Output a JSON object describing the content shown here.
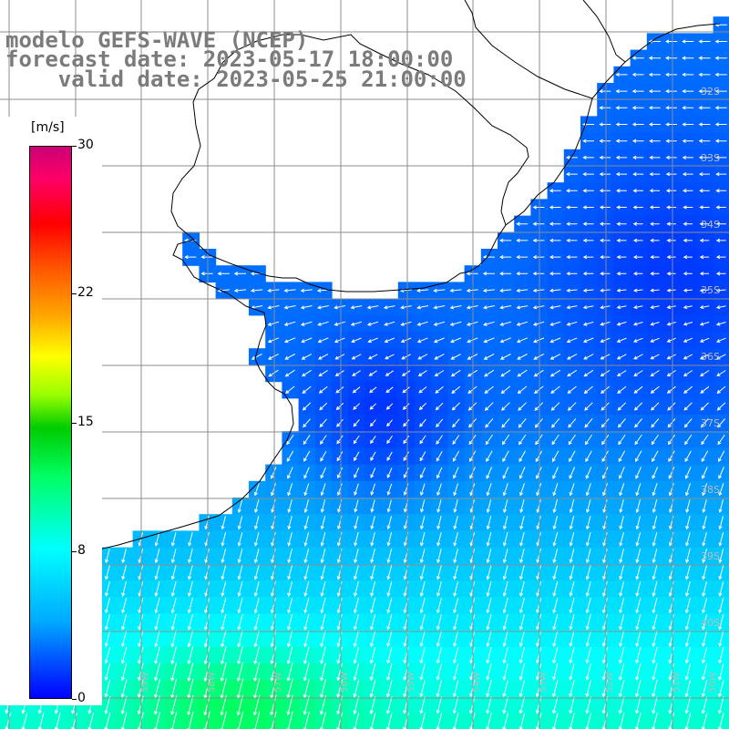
{
  "title": {
    "line1": "modelo GEFS-WAVE (NCEP)",
    "line2": "forecast date: 2023-05-17 18:00:00",
    "line3": "    valid date: 2023-05-25 21:00:00"
  },
  "colorbar": {
    "unit": "[m/s]",
    "ticks": [
      "30",
      "22",
      "15",
      "8",
      "0"
    ],
    "tick_values": [
      30,
      22,
      15,
      8,
      0
    ],
    "range": [
      0,
      30
    ],
    "colors": [
      "#0000ff",
      "#00aaff",
      "#00ffff",
      "#00ff66",
      "#00cc00",
      "#99ff00",
      "#ffff00",
      "#ffaa00",
      "#ff5500",
      "#ff0000",
      "#ff0066",
      "#cc0077"
    ]
  },
  "map": {
    "land_color": "#ffffff",
    "coast_color": "#000000",
    "grid_color": "#8c8c8c",
    "arrow_color": "#ffffff",
    "lat_labels": [
      "32S",
      "33S",
      "34S",
      "35S",
      "36S",
      "37S",
      "38S",
      "39S",
      "40S"
    ],
    "lon_labels": [
      "61W",
      "60W",
      "59W",
      "58W",
      "57W",
      "56W",
      "55W",
      "54W",
      "53W",
      "52W",
      "51W",
      "50W"
    ]
  }
}
